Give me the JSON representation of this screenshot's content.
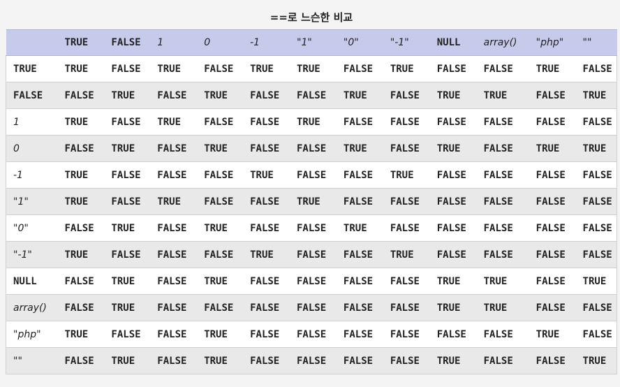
{
  "caption": "==로 느슨한 비교",
  "columns": [
    {
      "label": "",
      "style": "b"
    },
    {
      "label": "TRUE",
      "style": "b"
    },
    {
      "label": "FALSE",
      "style": "b"
    },
    {
      "label": "1",
      "style": "i"
    },
    {
      "label": "0",
      "style": "i"
    },
    {
      "label": "-1",
      "style": "i"
    },
    {
      "label": "\"1\"",
      "style": "i"
    },
    {
      "label": "\"0\"",
      "style": "i"
    },
    {
      "label": "\"-1\"",
      "style": "i"
    },
    {
      "label": "NULL",
      "style": "b"
    },
    {
      "label": "array()",
      "style": "i"
    },
    {
      "label": "\"php\"",
      "style": "i"
    },
    {
      "label": "\"\"",
      "style": "i"
    }
  ],
  "rows": [
    {
      "label": "TRUE",
      "style": "b",
      "cells": [
        "TRUE",
        "FALSE",
        "TRUE",
        "FALSE",
        "TRUE",
        "TRUE",
        "FALSE",
        "TRUE",
        "FALSE",
        "FALSE",
        "TRUE",
        "FALSE"
      ]
    },
    {
      "label": "FALSE",
      "style": "b",
      "cells": [
        "FALSE",
        "TRUE",
        "FALSE",
        "TRUE",
        "FALSE",
        "FALSE",
        "TRUE",
        "FALSE",
        "TRUE",
        "TRUE",
        "FALSE",
        "TRUE"
      ]
    },
    {
      "label": "1",
      "style": "i",
      "cells": [
        "TRUE",
        "FALSE",
        "TRUE",
        "FALSE",
        "FALSE",
        "TRUE",
        "FALSE",
        "FALSE",
        "FALSE",
        "FALSE",
        "FALSE",
        "FALSE"
      ]
    },
    {
      "label": "0",
      "style": "i",
      "cells": [
        "FALSE",
        "TRUE",
        "FALSE",
        "TRUE",
        "FALSE",
        "FALSE",
        "TRUE",
        "FALSE",
        "TRUE",
        "FALSE",
        "TRUE",
        "TRUE"
      ]
    },
    {
      "label": "-1",
      "style": "i",
      "cells": [
        "TRUE",
        "FALSE",
        "FALSE",
        "FALSE",
        "TRUE",
        "FALSE",
        "FALSE",
        "TRUE",
        "FALSE",
        "FALSE",
        "FALSE",
        "FALSE"
      ]
    },
    {
      "label": "\"1\"",
      "style": "i",
      "cells": [
        "TRUE",
        "FALSE",
        "TRUE",
        "FALSE",
        "FALSE",
        "TRUE",
        "FALSE",
        "FALSE",
        "FALSE",
        "FALSE",
        "FALSE",
        "FALSE"
      ]
    },
    {
      "label": "\"0\"",
      "style": "i",
      "cells": [
        "FALSE",
        "TRUE",
        "FALSE",
        "TRUE",
        "FALSE",
        "FALSE",
        "TRUE",
        "FALSE",
        "FALSE",
        "FALSE",
        "FALSE",
        "FALSE"
      ]
    },
    {
      "label": "\"-1\"",
      "style": "i",
      "cells": [
        "TRUE",
        "FALSE",
        "FALSE",
        "FALSE",
        "TRUE",
        "FALSE",
        "FALSE",
        "TRUE",
        "FALSE",
        "FALSE",
        "FALSE",
        "FALSE"
      ]
    },
    {
      "label": "NULL",
      "style": "b",
      "cells": [
        "FALSE",
        "TRUE",
        "FALSE",
        "TRUE",
        "FALSE",
        "FALSE",
        "FALSE",
        "FALSE",
        "TRUE",
        "TRUE",
        "FALSE",
        "TRUE"
      ]
    },
    {
      "label": "array()",
      "style": "i",
      "cells": [
        "FALSE",
        "TRUE",
        "FALSE",
        "FALSE",
        "FALSE",
        "FALSE",
        "FALSE",
        "FALSE",
        "TRUE",
        "TRUE",
        "FALSE",
        "FALSE"
      ]
    },
    {
      "label": "\"php\"",
      "style": "i",
      "cells": [
        "TRUE",
        "FALSE",
        "FALSE",
        "TRUE",
        "FALSE",
        "FALSE",
        "FALSE",
        "FALSE",
        "FALSE",
        "FALSE",
        "TRUE",
        "FALSE"
      ]
    },
    {
      "label": "\"\"",
      "style": "i",
      "cells": [
        "FALSE",
        "TRUE",
        "FALSE",
        "TRUE",
        "FALSE",
        "FALSE",
        "FALSE",
        "FALSE",
        "TRUE",
        "FALSE",
        "FALSE",
        "TRUE"
      ]
    }
  ],
  "colors": {
    "header_bg": "#c7cbeb",
    "row_odd": "#ffffff",
    "row_even": "#e9e9e9",
    "page_bg": "#f4f4f4"
  }
}
